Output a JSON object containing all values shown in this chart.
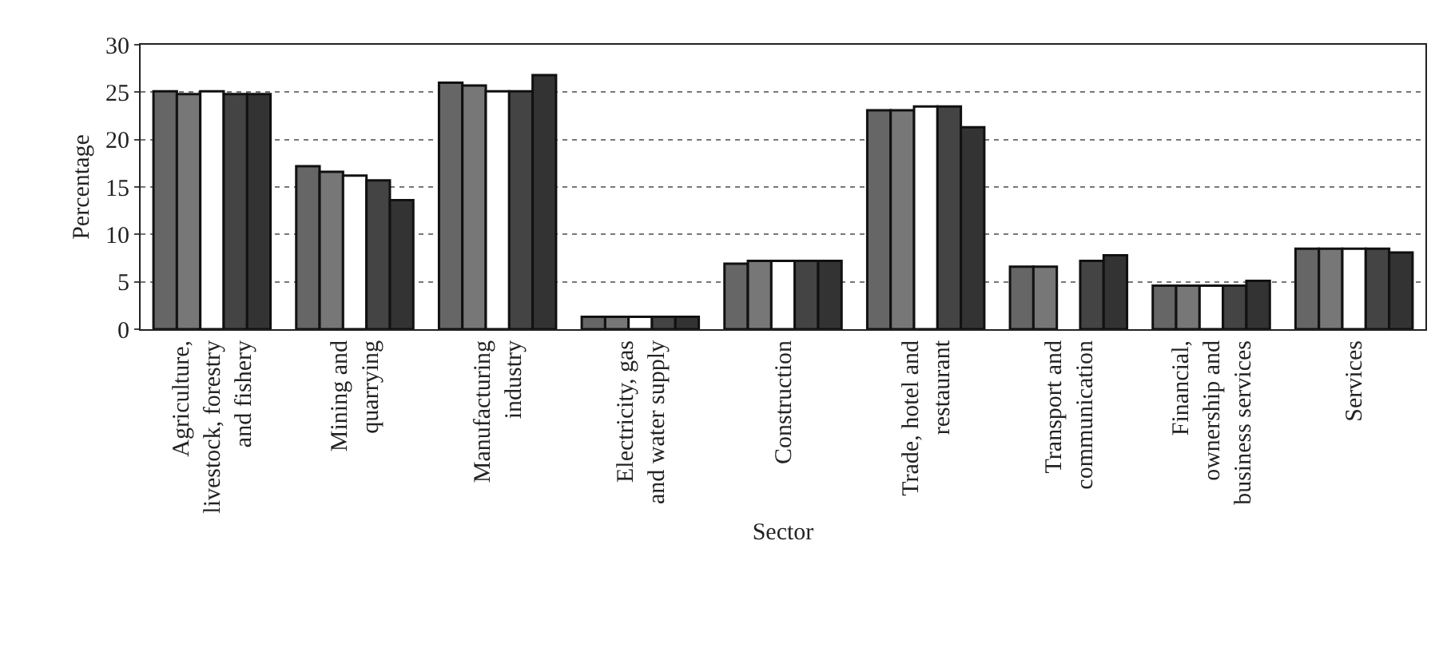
{
  "chart_data": {
    "type": "bar",
    "xlabel": "Sector",
    "ylabel": "Percentage",
    "categories": [
      "Agriculture, livestock, forestry and fishery",
      "Mining and quarrying",
      "Manufacturing industry",
      "Electricity, gas and water supply",
      "Construction",
      "Trade, hotel and restaurant",
      "Transport and communication",
      "Financial, ownership and business services",
      "Services"
    ],
    "series": [
      {
        "color": "#666666",
        "values": [
          25.1,
          17.2,
          26.0,
          1.3,
          6.9,
          23.1,
          6.6,
          4.6,
          8.5
        ]
      },
      {
        "color": "#777777",
        "values": [
          24.8,
          16.6,
          25.7,
          1.3,
          7.2,
          23.1,
          6.6,
          4.6,
          8.5
        ]
      },
      {
        "color": "#ffffff",
        "values": [
          25.1,
          16.2,
          25.1,
          1.3,
          7.2,
          23.5,
          null,
          4.6,
          8.5
        ]
      },
      {
        "color": "#444444",
        "values": [
          24.8,
          15.7,
          25.1,
          1.3,
          7.2,
          23.5,
          7.2,
          4.6,
          8.5
        ]
      },
      {
        "color": "#333333",
        "values": [
          24.8,
          13.6,
          26.8,
          1.3,
          7.2,
          21.3,
          7.8,
          5.1,
          8.1
        ]
      }
    ],
    "ylim": [
      0,
      30
    ],
    "yticks": [
      0,
      5,
      10,
      15,
      20,
      25,
      30
    ],
    "grid": "y"
  }
}
